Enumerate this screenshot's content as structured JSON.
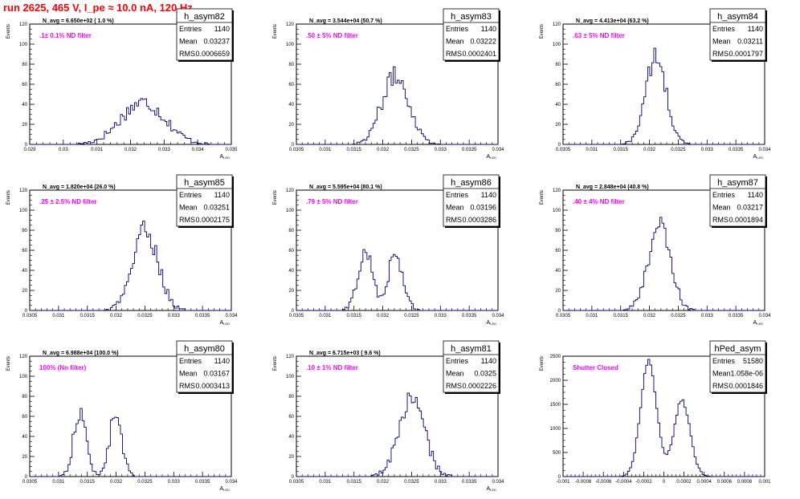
{
  "page_title": "run 2625,   465 V, I_pe ≈ 10.0 nA, 120 Hz",
  "chart_data": [
    {
      "type": "histogram",
      "name": "h_asym82",
      "avg_text": "N_avg = 6.650e+02 ( 1.0 %)",
      "filter_text": ".1± 0.1% ND filter",
      "stats": {
        "entries": "1140",
        "mean": "0.03237",
        "rms": "0.0006659"
      },
      "ylabel": "Events",
      "xlabel": "A",
      "xlabel_sub": "LED",
      "xlim": [
        0.029,
        0.035
      ],
      "ylim": [
        0,
        120
      ],
      "xticks": [
        "0.029",
        "0.03",
        "0.031",
        "0.032",
        "0.033",
        "0.034",
        "0.035"
      ],
      "yticks": [
        "0",
        "20",
        "40",
        "60",
        "80",
        "100",
        "120"
      ],
      "bins": {
        "center": 0.03237,
        "sigma": 0.00066,
        "peak": 42,
        "bimodal": false
      }
    },
    {
      "type": "histogram",
      "name": "h_asym83",
      "avg_text": "N_avg = 3.544e+04 (50.7 %)",
      "filter_text": ".50 ± 5% ND filter",
      "stats": {
        "entries": "1140",
        "mean": "0.03222",
        "rms": "0.0002401"
      },
      "ylabel": "Events",
      "xlabel": "A",
      "xlabel_sub": "LED",
      "xlim": [
        0.0305,
        0.034
      ],
      "ylim": [
        0,
        120
      ],
      "xticks": [
        "0.0305",
        "0.031",
        "0.0315",
        "0.032",
        "0.0325",
        "0.033",
        "0.0335",
        "0.034"
      ],
      "yticks": [
        "0",
        "20",
        "40",
        "60",
        "80",
        "100",
        "120"
      ],
      "bins": {
        "center": 0.03222,
        "sigma": 0.00024,
        "peak": 68,
        "bimodal": false
      }
    },
    {
      "type": "histogram",
      "name": "h_asym84",
      "avg_text": "N_avg = 4.413e+04 (63.2 %)",
      "filter_text": ".63 ± 5% ND filter",
      "stats": {
        "entries": "1140",
        "mean": "0.03211",
        "rms": "0.0001797"
      },
      "ylabel": "Events",
      "xlabel": "A",
      "xlabel_sub": "LED",
      "xlim": [
        0.0305,
        0.034
      ],
      "ylim": [
        0,
        120
      ],
      "xticks": [
        "0.0305",
        "0.031",
        "0.0315",
        "0.032",
        "0.0325",
        "0.033",
        "0.0335",
        "0.034"
      ],
      "yticks": [
        "0",
        "20",
        "40",
        "60",
        "80",
        "100",
        "120"
      ],
      "bins": {
        "center": 0.03211,
        "sigma": 0.00018,
        "peak": 86,
        "bimodal": false
      }
    },
    {
      "type": "histogram",
      "name": "h_asym85",
      "avg_text": "N_avg = 1.820e+04 (26.0 %)",
      "filter_text": ".25 ± 2.5% ND filter",
      "stats": {
        "entries": "1140",
        "mean": "0.03251",
        "rms": "0.0002175"
      },
      "ylabel": "Events",
      "xlabel": "A",
      "xlabel_sub": "LED",
      "xlim": [
        0.0305,
        0.034
      ],
      "ylim": [
        0,
        120
      ],
      "xticks": [
        "0.0305",
        "0.031",
        "0.0315",
        "0.032",
        "0.0325",
        "0.033",
        "0.0335",
        "0.034"
      ],
      "yticks": [
        "0",
        "20",
        "40",
        "60",
        "80",
        "100",
        "120"
      ],
      "bins": {
        "center": 0.03251,
        "sigma": 0.00022,
        "peak": 80,
        "bimodal": false
      }
    },
    {
      "type": "histogram",
      "name": "h_asym86",
      "avg_text": "N_avg = 5.595e+04 (80.1 %)",
      "filter_text": ".79 ± 5% ND filter",
      "stats": {
        "entries": "1140",
        "mean": "0.03196",
        "rms": "0.0003286"
      },
      "ylabel": "Events",
      "xlabel": "A",
      "xlabel_sub": "LED",
      "xlim": [
        0.0305,
        0.034
      ],
      "ylim": [
        0,
        120
      ],
      "xticks": [
        "0.0305",
        "0.031",
        "0.0315",
        "0.032",
        "0.0325",
        "0.033",
        "0.0335",
        "0.034"
      ],
      "yticks": [
        "0",
        "20",
        "40",
        "60",
        "80",
        "100",
        "120"
      ],
      "bins": {
        "center": 0.03196,
        "sigma": 0.00033,
        "peak": 58,
        "bimodal": true,
        "c1": 0.0317,
        "c2": 0.03222,
        "s": 0.00013
      }
    },
    {
      "type": "histogram",
      "name": "h_asym87",
      "avg_text": "N_avg = 2.848e+04 (40.8 %)",
      "filter_text": ".40 ± 4% ND filter",
      "stats": {
        "entries": "1140",
        "mean": "0.03217",
        "rms": "0.0001894"
      },
      "ylabel": "Events",
      "xlabel": "A",
      "xlabel_sub": "LED",
      "xlim": [
        0.0305,
        0.034
      ],
      "ylim": [
        0,
        120
      ],
      "xticks": [
        "0.0305",
        "0.031",
        "0.0315",
        "0.032",
        "0.0325",
        "0.033",
        "0.0335",
        "0.034"
      ],
      "yticks": [
        "0",
        "20",
        "40",
        "60",
        "80",
        "100",
        "120"
      ],
      "bins": {
        "center": 0.03217,
        "sigma": 0.00019,
        "peak": 85,
        "bimodal": false
      }
    },
    {
      "type": "histogram",
      "name": "h_asym80",
      "avg_text": "N_avg = 6.988e+04 (100.0 %)",
      "filter_text": "100% (No filter)",
      "stats": {
        "entries": "1140",
        "mean": "0.03167",
        "rms": "0.0003413"
      },
      "ylabel": "Events",
      "xlabel": "A",
      "xlabel_sub": "LED",
      "xlim": [
        0.0305,
        0.034
      ],
      "ylim": [
        0,
        120
      ],
      "xticks": [
        "0.0305",
        "0.031",
        "0.0315",
        "0.032",
        "0.0325",
        "0.033",
        "0.0335",
        "0.034"
      ],
      "yticks": [
        "0",
        "20",
        "40",
        "60",
        "80",
        "100",
        "120"
      ],
      "bins": {
        "center": 0.03167,
        "sigma": 0.00034,
        "peak": 63,
        "bimodal": true,
        "c1": 0.03137,
        "c2": 0.03199,
        "s": 0.00011
      }
    },
    {
      "type": "histogram",
      "name": "h_asym81",
      "avg_text": "N_avg = 6.715e+03 ( 9.6 %)",
      "filter_text": ".10 ± 1% ND filter",
      "stats": {
        "entries": "1140",
        "mean": "0.0325",
        "rms": "0.0002226"
      },
      "ylabel": "Events",
      "xlabel": "A",
      "xlabel_sub": "LED",
      "xlim": [
        0.0305,
        0.034
      ],
      "ylim": [
        0,
        120
      ],
      "xticks": [
        "0.0305",
        "0.031",
        "0.0315",
        "0.032",
        "0.0325",
        "0.033",
        "0.0335",
        "0.034"
      ],
      "yticks": [
        "0",
        "20",
        "40",
        "60",
        "80",
        "100",
        "120"
      ],
      "bins": {
        "center": 0.0325,
        "sigma": 0.00022,
        "peak": 78,
        "bimodal": false
      }
    },
    {
      "type": "histogram",
      "name": "hPed_asym",
      "avg_text": "",
      "filter_text": "Shutter Closed",
      "stats": {
        "entries": "51580",
        "mean": "1.058e-06",
        "rms": "0.0001846"
      },
      "ylabel": "Events",
      "xlabel": "",
      "xlabel_sub": "",
      "xlim": [
        -0.001,
        0.001
      ],
      "ylim": [
        0,
        2600
      ],
      "xticks": [
        "-0.001",
        "-0.0008",
        "-0.0006",
        "-0.0004",
        "-0.0002",
        "0",
        "0.0002",
        "0.0004",
        "0.0006",
        "0.0008",
        "0.001"
      ],
      "yticks": [
        "0",
        "500",
        "1000",
        "1500",
        "2000",
        "2500"
      ],
      "bins": {
        "center": 0.0,
        "sigma": 0.00018,
        "peak": 2480,
        "bimodal": true,
        "c1": -0.00015,
        "c2": 0.00018,
        "s": 8e-05,
        "ratio": 0.66
      }
    }
  ],
  "stat_labels": {
    "entries": "Entries",
    "mean": "Mean",
    "rms": "RMS"
  },
  "colors": {
    "title": "#ff0000",
    "hist": "#000080",
    "filter": "#ff00ff"
  }
}
